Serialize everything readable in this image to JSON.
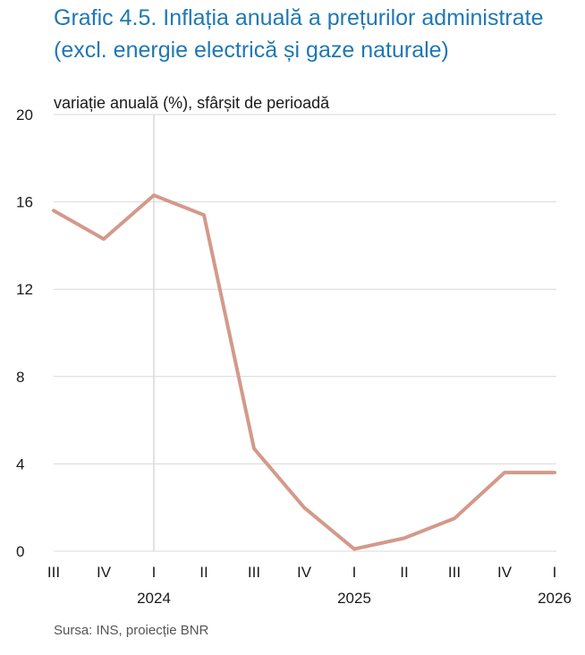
{
  "title_line1": "Grafic 4.5. Inflația anuală a prețurilor administrate",
  "title_line2": "(excl. energie electrică și gaze naturale)",
  "source": "Sursa: INS, proiecție BNR",
  "colors": {
    "title": "#1f78b4",
    "line": "#d4998a",
    "grid": "#d9d9d9",
    "text": "#1a1a1a"
  },
  "chart_data": {
    "type": "line",
    "ylabel": "variație anuală (%), sfârșit de perioadă",
    "ylim": [
      0,
      20
    ],
    "yticks": [
      0,
      4,
      8,
      12,
      16,
      20
    ],
    "categories": [
      "III",
      "IV",
      "I",
      "II",
      "III",
      "IV",
      "I",
      "II",
      "III",
      "IV",
      "I"
    ],
    "years": [
      {
        "label": "2024",
        "index": 2
      },
      {
        "label": "2025",
        "index": 6
      },
      {
        "label": "2026",
        "index": 10
      }
    ],
    "series": [
      {
        "values": [
          15.6,
          14.3,
          16.3,
          15.4,
          4.7,
          2.0,
          0.1,
          0.6,
          1.5,
          3.6,
          3.6
        ]
      }
    ],
    "grid": true,
    "vertical_marker_index": 2
  }
}
